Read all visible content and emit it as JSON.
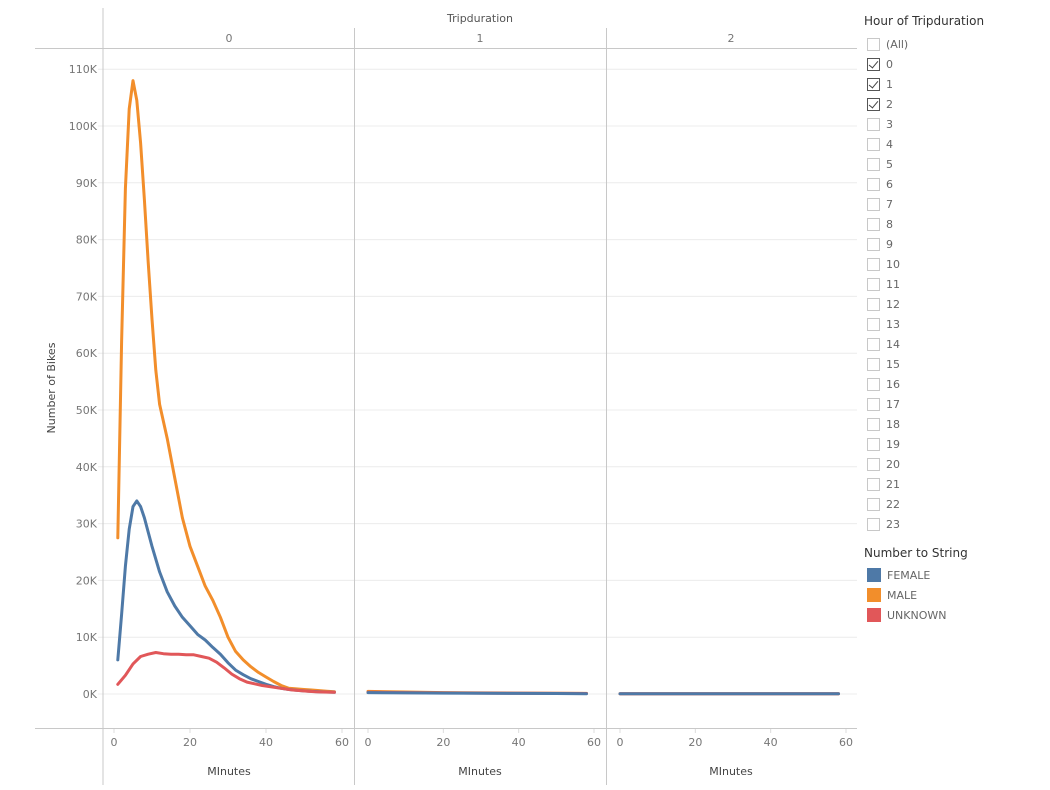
{
  "header": {
    "column_field": "Tripduration",
    "panels": [
      "0",
      "1",
      "2"
    ]
  },
  "y_axis": {
    "title": "Number of Bikes",
    "ticks": [
      "0K",
      "10K",
      "20K",
      "30K",
      "40K",
      "50K",
      "60K",
      "70K",
      "80K",
      "90K",
      "100K",
      "110K"
    ]
  },
  "x_axis": {
    "title": "MInutes",
    "ticks": [
      "0",
      "20",
      "40",
      "60"
    ]
  },
  "filter": {
    "title": "Hour of Tripduration",
    "items": [
      {
        "label": "(All)",
        "checked": false
      },
      {
        "label": "0",
        "checked": true
      },
      {
        "label": "1",
        "checked": true
      },
      {
        "label": "2",
        "checked": true
      },
      {
        "label": "3",
        "checked": false
      },
      {
        "label": "4",
        "checked": false
      },
      {
        "label": "5",
        "checked": false
      },
      {
        "label": "6",
        "checked": false
      },
      {
        "label": "7",
        "checked": false
      },
      {
        "label": "8",
        "checked": false
      },
      {
        "label": "9",
        "checked": false
      },
      {
        "label": "10",
        "checked": false
      },
      {
        "label": "11",
        "checked": false
      },
      {
        "label": "12",
        "checked": false
      },
      {
        "label": "13",
        "checked": false
      },
      {
        "label": "14",
        "checked": false
      },
      {
        "label": "15",
        "checked": false
      },
      {
        "label": "16",
        "checked": false
      },
      {
        "label": "17",
        "checked": false
      },
      {
        "label": "18",
        "checked": false
      },
      {
        "label": "19",
        "checked": false
      },
      {
        "label": "20",
        "checked": false
      },
      {
        "label": "21",
        "checked": false
      },
      {
        "label": "22",
        "checked": false
      },
      {
        "label": "23",
        "checked": false
      }
    ]
  },
  "legend": {
    "title": "Number to String",
    "items": [
      {
        "label": "FEMALE",
        "color": "#4e79a7"
      },
      {
        "label": "MALE",
        "color": "#f28e2b"
      },
      {
        "label": "UNKNOWN",
        "color": "#e15759"
      }
    ]
  },
  "chart_data": {
    "type": "line",
    "title": "",
    "facet_field": "Tripduration",
    "facets": [
      "0",
      "1",
      "2"
    ],
    "xlabel": "MInutes",
    "ylabel": "Number of Bikes",
    "xlim": [
      0,
      60
    ],
    "ylim": [
      -10000,
      113000
    ],
    "grid": true,
    "legend_position": "right",
    "legend": [
      "FEMALE",
      "MALE",
      "UNKNOWN"
    ],
    "series": [
      {
        "facet": "0",
        "name": "MALE",
        "color": "#f28e2b",
        "x": [
          1,
          2,
          3,
          4,
          5,
          6,
          7,
          8,
          9,
          10,
          11,
          12,
          14,
          16,
          18,
          20,
          22,
          24,
          26,
          28,
          30,
          32,
          34,
          36,
          38,
          40,
          42,
          44,
          46,
          48,
          50,
          52,
          54,
          56,
          58
        ],
        "y": [
          27500,
          62000,
          89000,
          103000,
          108000,
          104500,
          97000,
          87000,
          76000,
          66000,
          57000,
          51000,
          45000,
          38000,
          31000,
          26000,
          22500,
          19000,
          16500,
          13500,
          10000,
          7500,
          6000,
          4800,
          3800,
          3000,
          2200,
          1500,
          1000,
          900,
          800,
          700,
          600,
          500,
          400
        ]
      },
      {
        "facet": "0",
        "name": "FEMALE",
        "color": "#4e79a7",
        "x": [
          1,
          2,
          3,
          4,
          5,
          6,
          7,
          8,
          9,
          10,
          12,
          14,
          16,
          18,
          20,
          22,
          24,
          26,
          28,
          30,
          32,
          34,
          36,
          38,
          40,
          42,
          44,
          46,
          48,
          50,
          52,
          54,
          56,
          58
        ],
        "y": [
          6000,
          14000,
          22500,
          29000,
          33000,
          34000,
          33000,
          31000,
          28500,
          26000,
          21500,
          18000,
          15500,
          13500,
          12000,
          10500,
          9500,
          8200,
          7000,
          5500,
          4200,
          3400,
          2700,
          2200,
          1700,
          1300,
          1000,
          800,
          650,
          550,
          450,
          400,
          350,
          300
        ]
      },
      {
        "facet": "0",
        "name": "UNKNOWN",
        "color": "#e15759",
        "x": [
          1,
          3,
          5,
          7,
          9,
          11,
          13,
          15,
          17,
          19,
          21,
          23,
          25,
          27,
          29,
          31,
          33,
          35,
          37,
          39,
          41,
          43,
          45,
          47,
          49,
          51,
          53,
          55,
          58
        ],
        "y": [
          1700,
          3300,
          5300,
          6600,
          7000,
          7300,
          7100,
          7000,
          7000,
          6900,
          6900,
          6600,
          6300,
          5600,
          4600,
          3500,
          2700,
          2100,
          1800,
          1500,
          1300,
          1100,
          900,
          700,
          600,
          500,
          400,
          350,
          300
        ]
      },
      {
        "facet": "1",
        "name": "MALE",
        "color": "#f28e2b",
        "x": [
          0,
          10,
          20,
          30,
          40,
          50,
          58
        ],
        "y": [
          450,
          350,
          250,
          200,
          150,
          120,
          100
        ]
      },
      {
        "facet": "1",
        "name": "UNKNOWN",
        "color": "#e15759",
        "x": [
          0,
          10,
          20,
          30,
          40,
          50,
          58
        ],
        "y": [
          300,
          250,
          200,
          150,
          120,
          100,
          90
        ]
      },
      {
        "facet": "1",
        "name": "FEMALE",
        "color": "#4e79a7",
        "x": [
          0,
          10,
          20,
          30,
          40,
          50,
          58
        ],
        "y": [
          250,
          200,
          150,
          120,
          100,
          80,
          60
        ]
      },
      {
        "facet": "2",
        "name": "MALE",
        "color": "#f28e2b",
        "x": [
          0,
          20,
          40,
          58
        ],
        "y": [
          60,
          60,
          60,
          60
        ]
      },
      {
        "facet": "2",
        "name": "UNKNOWN",
        "color": "#e15759",
        "x": [
          0,
          20,
          40,
          58
        ],
        "y": [
          50,
          50,
          50,
          50
        ]
      },
      {
        "facet": "2",
        "name": "FEMALE",
        "color": "#4e79a7",
        "x": [
          0,
          20,
          40,
          58
        ],
        "y": [
          40,
          40,
          40,
          40
        ]
      }
    ]
  }
}
